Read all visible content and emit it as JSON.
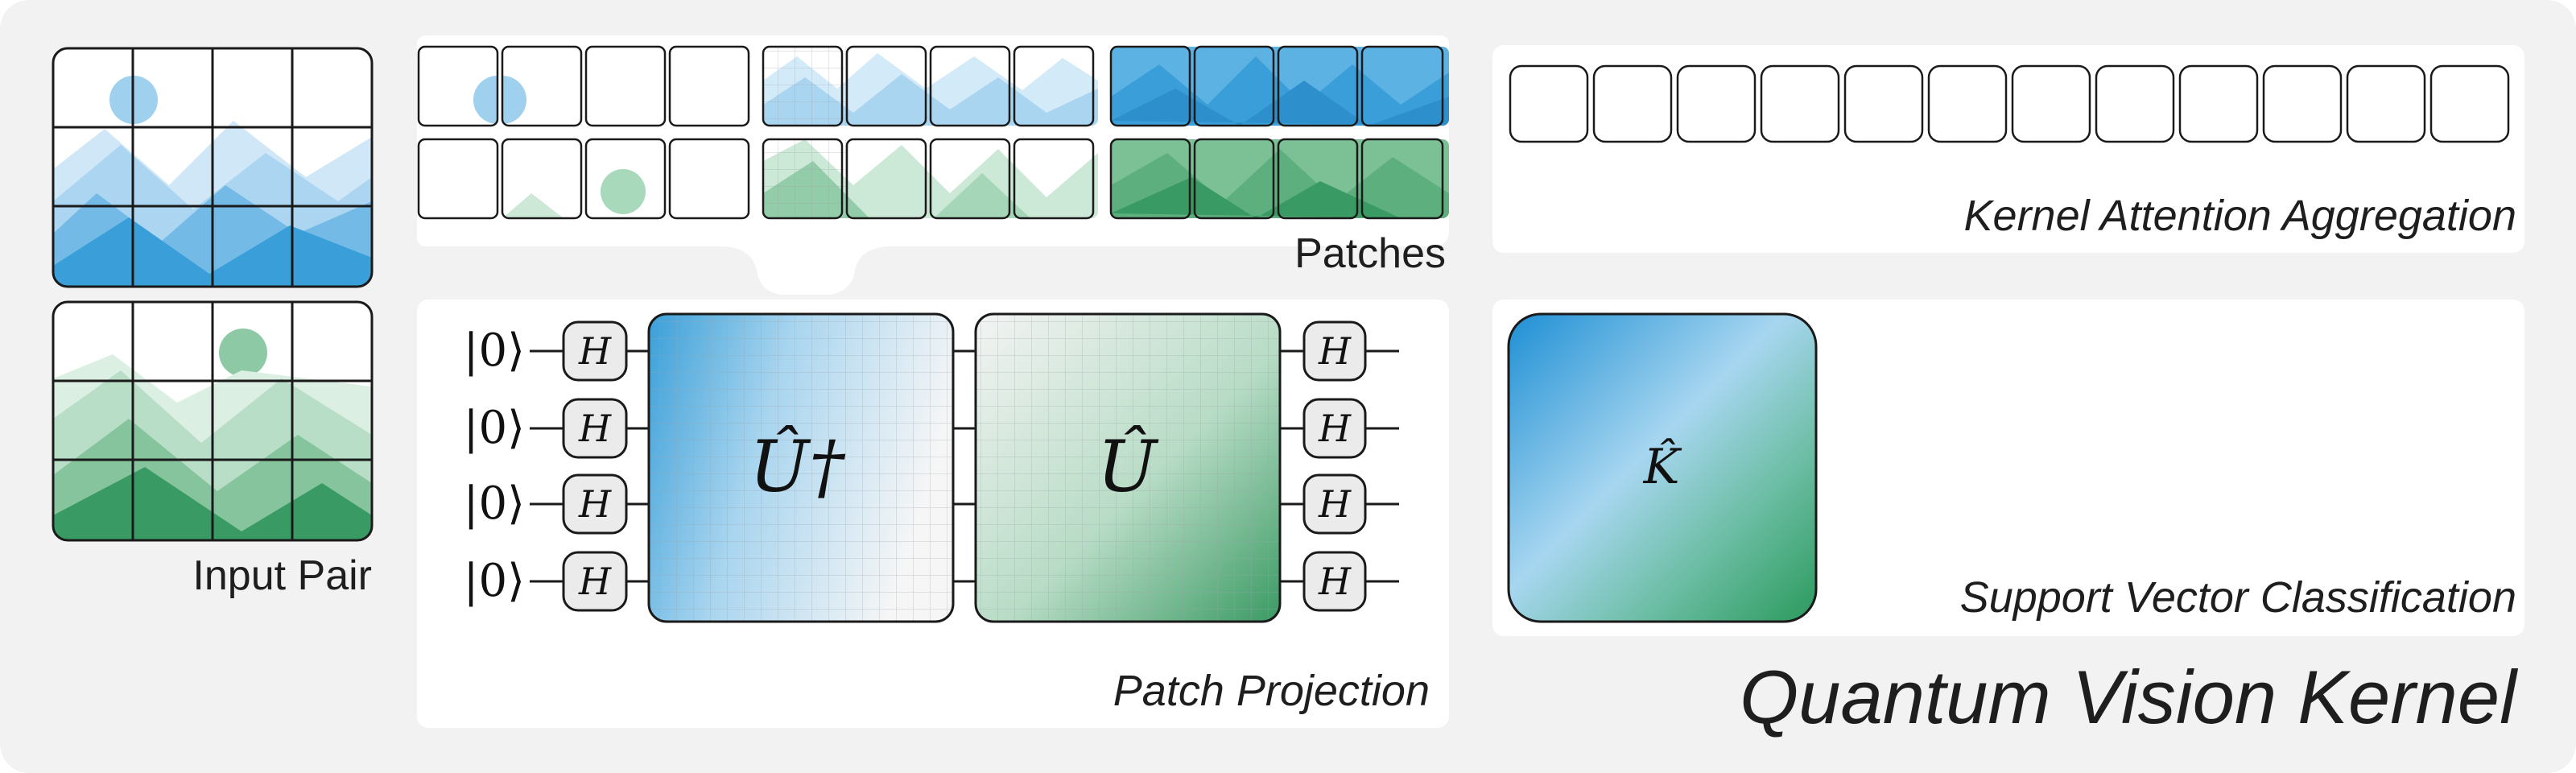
{
  "title": "Quantum Vision Kernel",
  "labels": {
    "input_pair": "Input Pair",
    "patches": "Patches",
    "patch_projection": "Patch Projection",
    "kernel_attention": "Kernel Attention Aggregation",
    "svc": "Support Vector Classification"
  },
  "circuit": {
    "qubit_label": "|0⟩",
    "gate": "H",
    "unitary_dagger": "Û†",
    "unitary": "Û",
    "kernel": "K̂"
  },
  "colors": {
    "blue": "#3a9fd8",
    "green": "#3a9a63",
    "panel_bg": "#f2f2f2",
    "card_bg": "#ffffff"
  },
  "icons": [
    "mountain-image-icon",
    "sun-circle-icon"
  ]
}
